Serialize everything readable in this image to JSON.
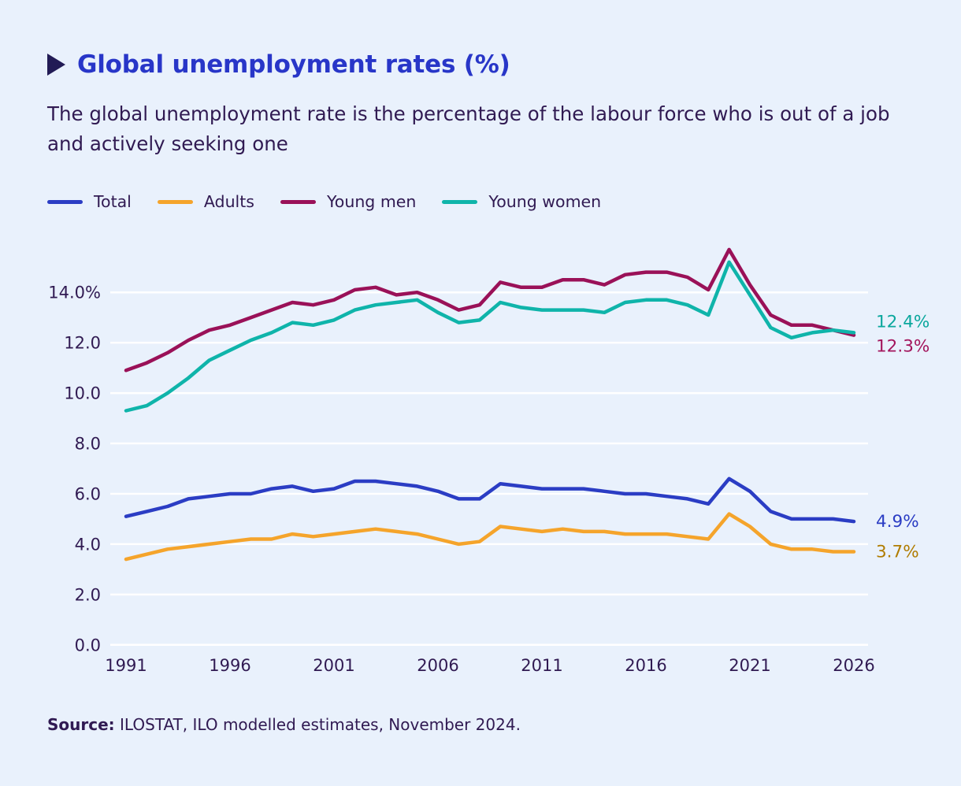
{
  "header": {
    "title": "Global unemployment rates (%)",
    "subtitle": "The global unemployment rate is the percentage of the labour force who is out of a job and actively seeking one"
  },
  "source": {
    "label": "Source:",
    "text": "ILOSTAT, ILO modelled estimates, November 2024."
  },
  "colors": {
    "background": "#e9f1fc",
    "title": "#2836c8",
    "text": "#301a52",
    "grid": "#ffffff"
  },
  "chart_data": {
    "type": "line",
    "title": "Global unemployment rates (%)",
    "x_start": 1991,
    "x_end": 2026,
    "x_ticks": [
      1991,
      1996,
      2001,
      2006,
      2011,
      2016,
      2021,
      2026
    ],
    "ylim": [
      0,
      15.8
    ],
    "grid": "horizontal-white",
    "legend_position": "top",
    "y_ticks": [
      {
        "value": 14,
        "label": "14.0%"
      },
      {
        "value": 12,
        "label": "12.0"
      },
      {
        "value": 10,
        "label": "10.0"
      },
      {
        "value": 8,
        "label": "8.0"
      },
      {
        "value": 6,
        "label": "6.0"
      },
      {
        "value": 4,
        "label": "4.0"
      },
      {
        "value": 2,
        "label": "2.0"
      },
      {
        "value": 0,
        "label": "0.0"
      }
    ],
    "series": [
      {
        "name": "Total",
        "color": "#2b3dc4",
        "label_color": "#2b3dc4",
        "end_label": "4.9%",
        "values": [
          5.1,
          5.3,
          5.5,
          5.8,
          5.9,
          6.0,
          6.0,
          6.2,
          6.3,
          6.1,
          6.2,
          6.5,
          6.5,
          6.4,
          6.3,
          6.1,
          5.8,
          5.8,
          6.4,
          6.3,
          6.2,
          6.2,
          6.2,
          6.1,
          6.0,
          6.0,
          5.9,
          5.8,
          5.6,
          6.6,
          6.1,
          5.3,
          5.0,
          5.0,
          5.0,
          4.9
        ]
      },
      {
        "name": "Adults",
        "color": "#f5a42b",
        "label_color": "#b07c00",
        "end_label": "3.7%",
        "values": [
          3.4,
          3.6,
          3.8,
          3.9,
          4.0,
          4.1,
          4.2,
          4.2,
          4.4,
          4.3,
          4.4,
          4.5,
          4.6,
          4.5,
          4.4,
          4.2,
          4.0,
          4.1,
          4.7,
          4.6,
          4.5,
          4.6,
          4.5,
          4.5,
          4.4,
          4.4,
          4.4,
          4.3,
          4.2,
          5.2,
          4.7,
          4.0,
          3.8,
          3.8,
          3.7,
          3.7
        ]
      },
      {
        "name": "Young men",
        "color": "#9a1158",
        "label_color": "#a3155c",
        "end_label": "12.3%",
        "values": [
          10.9,
          11.2,
          11.6,
          12.1,
          12.5,
          12.7,
          13.0,
          13.3,
          13.6,
          13.5,
          13.7,
          14.1,
          14.2,
          13.9,
          14.0,
          13.7,
          13.3,
          13.5,
          14.4,
          14.2,
          14.2,
          14.5,
          14.5,
          14.3,
          14.7,
          14.8,
          14.8,
          14.6,
          14.1,
          15.7,
          14.3,
          13.1,
          12.7,
          12.7,
          12.5,
          12.3
        ]
      },
      {
        "name": "Young women",
        "color": "#0fb4aa",
        "label_color": "#0ba79d",
        "end_label": "12.4%",
        "values": [
          9.3,
          9.5,
          10.0,
          10.6,
          11.3,
          11.7,
          12.1,
          12.4,
          12.8,
          12.7,
          12.9,
          13.3,
          13.5,
          13.6,
          13.7,
          13.2,
          12.8,
          12.9,
          13.6,
          13.4,
          13.3,
          13.3,
          13.3,
          13.2,
          13.6,
          13.7,
          13.7,
          13.5,
          13.1,
          15.2,
          13.9,
          12.6,
          12.2,
          12.4,
          12.5,
          12.4
        ]
      }
    ]
  }
}
